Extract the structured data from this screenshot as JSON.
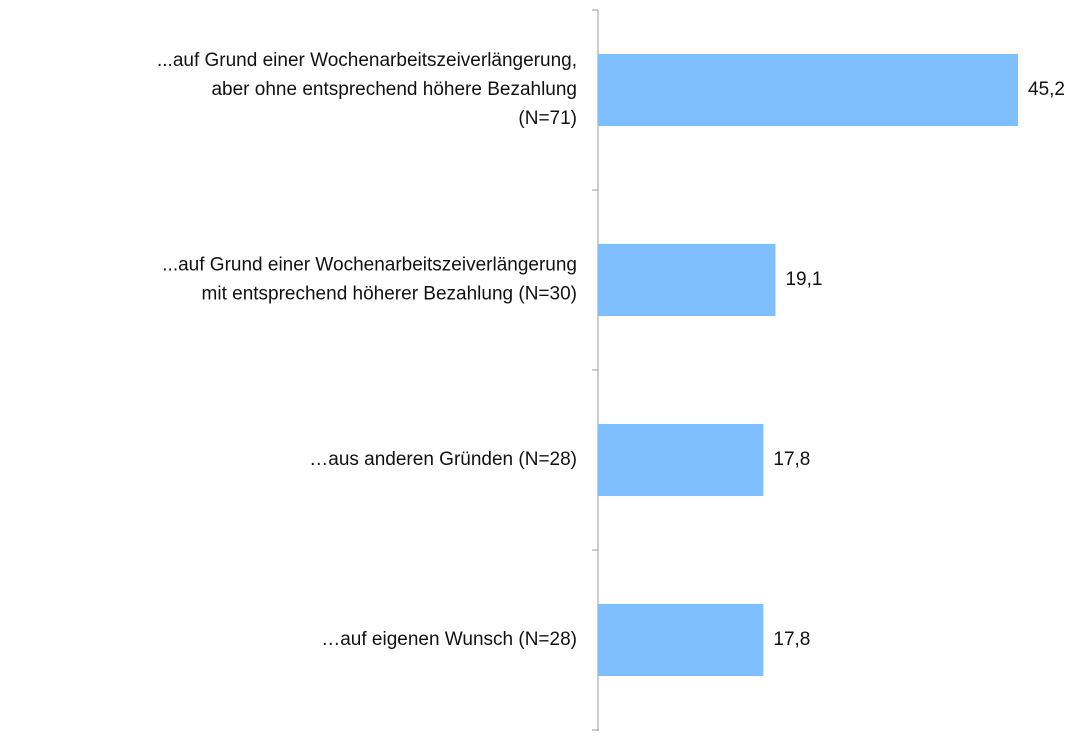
{
  "chart_data": {
    "type": "hbar",
    "categories": [
      [
        "...auf Grund einer Wochenarbeitszeiverlängerung,",
        "aber ohne entsprechend höhere Bezahlung",
        "(N=71)"
      ],
      [
        "...auf Grund einer Wochenarbeitszeiverlängerung",
        "mit entsprechend höherer Bezahlung (N=30)"
      ],
      [
        "…aus anderen Gründen (N=28)"
      ],
      [
        "…auf eigenen Wunsch (N=28)"
      ]
    ],
    "values": [
      45.2,
      19.1,
      17.8,
      17.8
    ],
    "value_labels": [
      "45,2",
      "19,1",
      "17,8",
      "17,8"
    ],
    "color": "#80bfff"
  }
}
